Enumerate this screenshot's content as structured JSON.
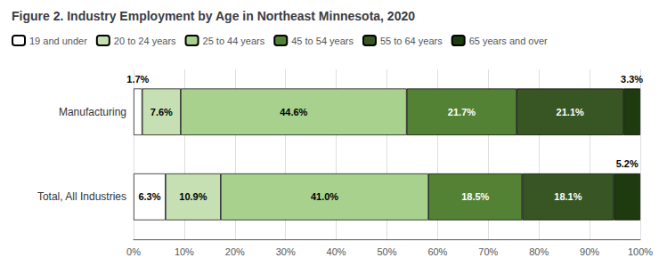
{
  "chart_data": {
    "type": "bar",
    "orientation": "horizontal",
    "stacked": true,
    "title": "Figure 2. Industry Employment by Age in Northeast Minnesota, 2020",
    "categories": [
      "Manufacturing",
      "Total, All Industries"
    ],
    "series": [
      {
        "name": "19 and under",
        "color": "#ffffff",
        "values": [
          1.7,
          6.3
        ],
        "value_labels": [
          "1.7%",
          "6.3%"
        ]
      },
      {
        "name": "20 to 24 years",
        "color": "#c6e0b4",
        "values": [
          7.6,
          10.9
        ],
        "value_labels": [
          "7.6%",
          "10.9%"
        ]
      },
      {
        "name": "25 to 44 years",
        "color": "#a9d18e",
        "values": [
          44.6,
          41.0
        ],
        "value_labels": [
          "44.6%",
          "41.0%"
        ]
      },
      {
        "name": "45 to 54 years",
        "color": "#548235",
        "values": [
          21.7,
          18.5
        ],
        "value_labels": [
          "21.7%",
          "18.5%"
        ]
      },
      {
        "name": "55 to 64 years",
        "color": "#375623",
        "values": [
          21.1,
          18.1
        ],
        "value_labels": [
          "21.1%",
          "18.1%"
        ]
      },
      {
        "name": "65 years and over",
        "color": "#1e3a0f",
        "values": [
          3.3,
          5.2
        ],
        "value_labels": [
          "3.3%",
          "5.2%"
        ]
      }
    ],
    "xlim": [
      0,
      100
    ],
    "xticks": [
      {
        "value": 0,
        "label": "0%"
      },
      {
        "value": 10,
        "label": "10%"
      },
      {
        "value": 20,
        "label": "20%"
      },
      {
        "value": 30,
        "label": "30%"
      },
      {
        "value": 40,
        "label": "40%"
      },
      {
        "value": 50,
        "label": "50%"
      },
      {
        "value": 60,
        "label": "60%"
      },
      {
        "value": 70,
        "label": "70%"
      },
      {
        "value": 80,
        "label": "80%"
      },
      {
        "value": 90,
        "label": "90%"
      },
      {
        "value": 100,
        "label": "100%"
      }
    ],
    "grid": true,
    "legend": "upper left",
    "data_labels": true
  }
}
